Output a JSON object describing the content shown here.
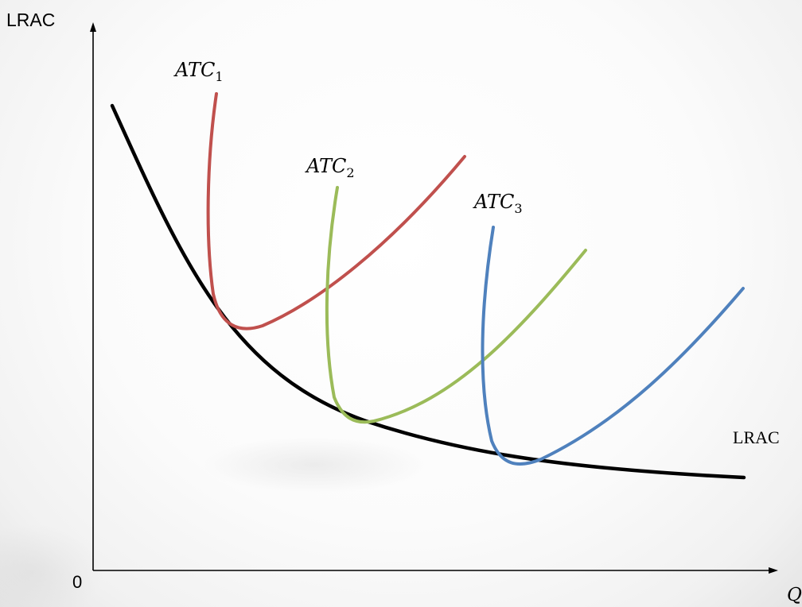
{
  "axes": {
    "y_label": "LRAC",
    "x_label": "Q",
    "origin_label": "0"
  },
  "curves": {
    "lrac": {
      "label": "LRAC",
      "color": "#000000"
    },
    "atc1": {
      "label_base": "ATC",
      "label_sub": "1",
      "color": "#c0504d"
    },
    "atc2": {
      "label_base": "ATC",
      "label_sub": "2",
      "color": "#9bbb59"
    },
    "atc3": {
      "label_base": "ATC",
      "label_sub": "3",
      "color": "#4f81bd"
    }
  }
}
